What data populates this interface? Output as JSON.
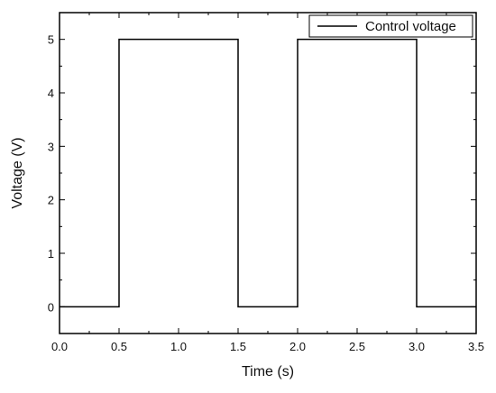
{
  "chart_data": {
    "type": "line",
    "xlabel": "Time (s)",
    "ylabel": "Voltage (V)",
    "xlim": [
      0,
      3.5
    ],
    "ylim": [
      -0.5,
      5.5
    ],
    "x_ticks": [
      "0.0",
      "0.5",
      "1.0",
      "1.5",
      "2.0",
      "2.5",
      "3.0",
      "3.5"
    ],
    "y_ticks": [
      "0",
      "1",
      "2",
      "3",
      "4",
      "5"
    ],
    "grid": false,
    "legend_position": "top-right",
    "series": [
      {
        "name": "Control voltage",
        "color": "#000000",
        "x": [
          0,
          0.5,
          0.5,
          1.5,
          1.5,
          2.0,
          2.0,
          3.0,
          3.0,
          3.5
        ],
        "y": [
          0,
          0,
          5,
          5,
          0,
          0,
          5,
          5,
          0,
          0
        ]
      }
    ]
  }
}
